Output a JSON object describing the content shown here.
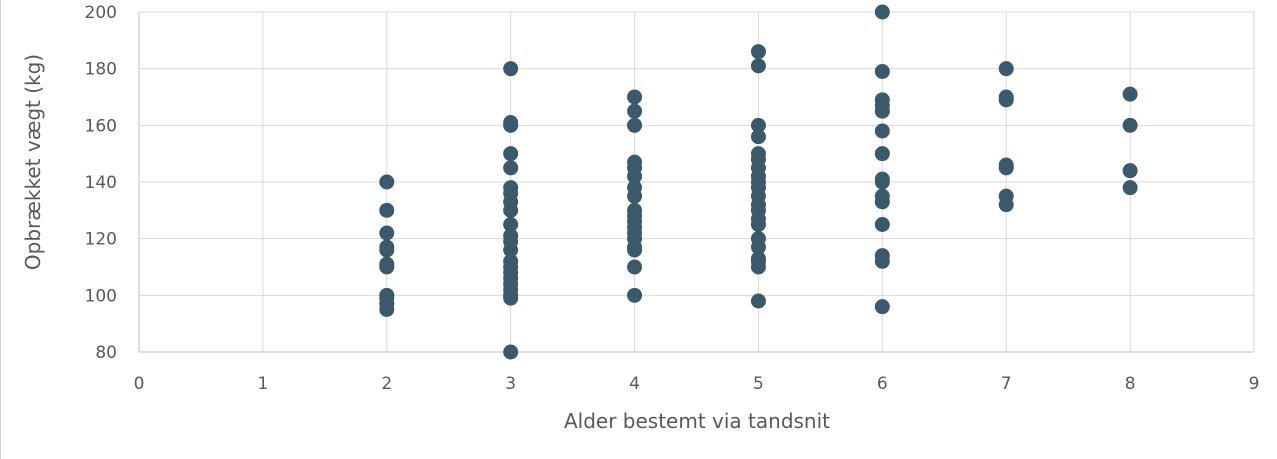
{
  "chart_data": {
    "type": "scatter",
    "title": "",
    "xlabel": "Alder bestemt via tandsnit",
    "ylabel": "Opbrækket vægt (kg)",
    "xlim": [
      0,
      9
    ],
    "ylim": [
      80,
      200
    ],
    "x_ticks": [
      0,
      1,
      2,
      3,
      4,
      5,
      6,
      7,
      8,
      9
    ],
    "y_ticks": [
      80,
      100,
      120,
      140,
      160,
      180,
      200
    ],
    "x_tick_labels": [
      "0",
      "1",
      "2",
      "3",
      "4",
      "5",
      "6",
      "7",
      "8",
      "9"
    ],
    "y_tick_labels": [
      "80",
      "100",
      "120",
      "140",
      "160",
      "180",
      "200"
    ],
    "grid": true,
    "legend": "none",
    "marker_color": "#3a5a6b",
    "series": [
      {
        "points": [
          [
            2,
            140
          ],
          [
            2,
            130
          ],
          [
            2,
            122
          ],
          [
            2,
            117
          ],
          [
            2,
            116
          ],
          [
            2,
            111
          ],
          [
            2,
            110
          ],
          [
            2,
            100
          ],
          [
            2,
            99
          ],
          [
            2,
            97
          ],
          [
            2,
            95
          ],
          [
            3,
            180
          ],
          [
            3,
            161
          ],
          [
            3,
            160
          ],
          [
            3,
            150
          ],
          [
            3,
            145
          ],
          [
            3,
            138
          ],
          [
            3,
            136
          ],
          [
            3,
            133
          ],
          [
            3,
            130
          ],
          [
            3,
            125
          ],
          [
            3,
            121
          ],
          [
            3,
            119
          ],
          [
            3,
            116
          ],
          [
            3,
            112
          ],
          [
            3,
            110
          ],
          [
            3,
            108
          ],
          [
            3,
            106
          ],
          [
            3,
            104
          ],
          [
            3,
            102
          ],
          [
            3,
            100
          ],
          [
            3,
            99
          ],
          [
            3,
            80
          ],
          [
            4,
            170
          ],
          [
            4,
            165
          ],
          [
            4,
            160
          ],
          [
            4,
            147
          ],
          [
            4,
            145
          ],
          [
            4,
            142
          ],
          [
            4,
            138
          ],
          [
            4,
            135
          ],
          [
            4,
            130
          ],
          [
            4,
            128
          ],
          [
            4,
            126
          ],
          [
            4,
            124
          ],
          [
            4,
            122
          ],
          [
            4,
            120
          ],
          [
            4,
            117
          ],
          [
            4,
            116
          ],
          [
            4,
            110
          ],
          [
            4,
            100
          ],
          [
            5,
            186
          ],
          [
            5,
            181
          ],
          [
            5,
            160
          ],
          [
            5,
            156
          ],
          [
            5,
            150
          ],
          [
            5,
            148
          ],
          [
            5,
            145
          ],
          [
            5,
            142
          ],
          [
            5,
            140
          ],
          [
            5,
            138
          ],
          [
            5,
            135
          ],
          [
            5,
            132
          ],
          [
            5,
            130
          ],
          [
            5,
            127
          ],
          [
            5,
            125
          ],
          [
            5,
            120
          ],
          [
            5,
            117
          ],
          [
            5,
            113
          ],
          [
            5,
            112
          ],
          [
            5,
            110
          ],
          [
            5,
            98
          ],
          [
            6,
            200
          ],
          [
            6,
            179
          ],
          [
            6,
            169
          ],
          [
            6,
            167
          ],
          [
            6,
            165
          ],
          [
            6,
            158
          ],
          [
            6,
            150
          ],
          [
            6,
            141
          ],
          [
            6,
            140
          ],
          [
            6,
            135
          ],
          [
            6,
            133
          ],
          [
            6,
            125
          ],
          [
            6,
            114
          ],
          [
            6,
            112
          ],
          [
            6,
            96
          ],
          [
            7,
            180
          ],
          [
            7,
            170
          ],
          [
            7,
            169
          ],
          [
            7,
            146
          ],
          [
            7,
            145
          ],
          [
            7,
            135
          ],
          [
            7,
            132
          ],
          [
            8,
            171
          ],
          [
            8,
            160
          ],
          [
            8,
            144
          ],
          [
            8,
            138
          ]
        ]
      }
    ]
  }
}
